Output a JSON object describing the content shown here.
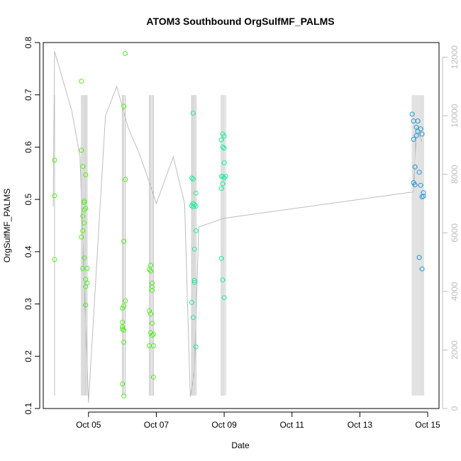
{
  "chart_data": {
    "type": "scatter",
    "title": "ATOM3 Southbound OrgSulfMF_PALMS",
    "xlabel": "Date",
    "ylabel": "OrgSulfMF_PALMS",
    "xlim": [
      "2017-10-03T16:00",
      "2017-10-15T08:00"
    ],
    "ylim": [
      0.1,
      0.8
    ],
    "y2lim": [
      0,
      12500
    ],
    "x_ticks": [
      {
        "date": "2017-10-05",
        "label": "Oct 05"
      },
      {
        "date": "2017-10-07",
        "label": "Oct 07"
      },
      {
        "date": "2017-10-09",
        "label": "Oct 09"
      },
      {
        "date": "2017-10-11",
        "label": "Oct 11"
      },
      {
        "date": "2017-10-13",
        "label": "Oct 13"
      },
      {
        "date": "2017-10-15",
        "label": "Oct 15"
      }
    ],
    "y_ticks": [
      0.1,
      0.2,
      0.3,
      0.4,
      0.5,
      0.6,
      0.7,
      0.8
    ],
    "y2_ticks": [
      0,
      2000,
      4000,
      6000,
      8000,
      10000,
      12000
    ],
    "grid": false,
    "colors": {
      "early": "#55ee22",
      "mid": "#22ee99",
      "late": "#2299dd",
      "altitude_line": "#bdbdbd"
    },
    "series": [
      {
        "values_description": "OrgSulfMF_PALMS",
        "points": [
          [
            "2017-10-04T00:00",
            0.575
          ],
          [
            "2017-10-04T00:00",
            0.507
          ],
          [
            "2017-10-04T00:00",
            0.385
          ],
          [
            "2017-10-04T19:00",
            0.726
          ],
          [
            "2017-10-04T19:00",
            0.594
          ],
          [
            "2017-10-04T20:00",
            0.563
          ],
          [
            "2017-10-04T21:00",
            0.497
          ],
          [
            "2017-10-04T21:00",
            0.494
          ],
          [
            "2017-10-04T22:00",
            0.547
          ],
          [
            "2017-10-04T21:00",
            0.48
          ],
          [
            "2017-10-04T22:00",
            0.483
          ],
          [
            "2017-10-04T20:00",
            0.468
          ],
          [
            "2017-10-04T21:00",
            0.455
          ],
          [
            "2017-10-04T20:00",
            0.44
          ],
          [
            "2017-10-04T19:00",
            0.428
          ],
          [
            "2017-10-04T21:00",
            0.388
          ],
          [
            "2017-10-04T20:00",
            0.368
          ],
          [
            "2017-10-04T23:00",
            0.368
          ],
          [
            "2017-10-04T22:00",
            0.347
          ],
          [
            "2017-10-04T23:00",
            0.34
          ],
          [
            "2017-10-04T22:00",
            0.333
          ],
          [
            "2017-10-04T22:00",
            0.298
          ],
          [
            "2017-10-06T02:00",
            0.779
          ],
          [
            "2017-10-06T01:00",
            0.678
          ],
          [
            "2017-10-06T02:00",
            0.538
          ],
          [
            "2017-10-06T01:00",
            0.42
          ],
          [
            "2017-10-06T02:00",
            0.306
          ],
          [
            "2017-10-06T01:00",
            0.296
          ],
          [
            "2017-10-06T00:00",
            0.292
          ],
          [
            "2017-10-06T00:00",
            0.265
          ],
          [
            "2017-10-06T00:00",
            0.256
          ],
          [
            "2017-10-06T00:00",
            0.252
          ],
          [
            "2017-10-06T01:00",
            0.25
          ],
          [
            "2017-10-06T01:00",
            0.227
          ],
          [
            "2017-10-06T00:00",
            0.147
          ],
          [
            "2017-10-06T01:00",
            0.124
          ],
          [
            "2017-10-06T19:00",
            0.366
          ],
          [
            "2017-10-06T20:00",
            0.374
          ],
          [
            "2017-10-06T20:00",
            0.363
          ],
          [
            "2017-10-06T21:00",
            0.34
          ],
          [
            "2017-10-06T21:00",
            0.333
          ],
          [
            "2017-10-06T21:00",
            0.326
          ],
          [
            "2017-10-06T19:00",
            0.287
          ],
          [
            "2017-10-06T20:00",
            0.281
          ],
          [
            "2017-10-06T21:00",
            0.263
          ],
          [
            "2017-10-06T20:00",
            0.245
          ],
          [
            "2017-10-06T22:00",
            0.242
          ],
          [
            "2017-10-06T21:00",
            0.24
          ],
          [
            "2017-10-06T19:00",
            0.22
          ],
          [
            "2017-10-06T22:00",
            0.22
          ],
          [
            "2017-10-06T22:00",
            0.16
          ],
          [
            "2017-10-08T02:00",
            0.665
          ],
          [
            "2017-10-08T01:00",
            0.541
          ],
          [
            "2017-10-08T02:00",
            0.539
          ],
          [
            "2017-10-08T04:00",
            0.512
          ],
          [
            "2017-10-08T02:00",
            0.492
          ],
          [
            "2017-10-08T03:00",
            0.49
          ],
          [
            "2017-10-08T01:00",
            0.488
          ],
          [
            "2017-10-08T04:00",
            0.487
          ],
          [
            "2017-10-08T02:00",
            0.486
          ],
          [
            "2017-10-08T04:00",
            0.44
          ],
          [
            "2017-10-08T03:00",
            0.405
          ],
          [
            "2017-10-08T03:00",
            0.345
          ],
          [
            "2017-10-08T03:00",
            0.341
          ],
          [
            "2017-10-08T01:00",
            0.303
          ],
          [
            "2017-10-08T02:00",
            0.274
          ],
          [
            "2017-10-08T04:00",
            0.218
          ],
          [
            "2017-10-08T23:00",
            0.625
          ],
          [
            "2017-10-09T00:00",
            0.621
          ],
          [
            "2017-10-08T22:00",
            0.614
          ],
          [
            "2017-10-08T23:00",
            0.6
          ],
          [
            "2017-10-09T00:00",
            0.598
          ],
          [
            "2017-10-09T00:00",
            0.57
          ],
          [
            "2017-10-08T22:00",
            0.544
          ],
          [
            "2017-10-09T00:00",
            0.541
          ],
          [
            "2017-10-08T23:00",
            0.544
          ],
          [
            "2017-10-09T01:00",
            0.544
          ],
          [
            "2017-10-08T23:00",
            0.53
          ],
          [
            "2017-10-08T22:00",
            0.521
          ],
          [
            "2017-10-08T22:00",
            0.387
          ],
          [
            "2017-10-08T23:00",
            0.346
          ],
          [
            "2017-10-09T00:00",
            0.312
          ],
          [
            "2017-10-14T13:00",
            0.663
          ],
          [
            "2017-10-14T14:00",
            0.65
          ],
          [
            "2017-10-14T17:00",
            0.65
          ],
          [
            "2017-10-14T16:00",
            0.638
          ],
          [
            "2017-10-14T19:00",
            0.635
          ],
          [
            "2017-10-14T17:00",
            0.63
          ],
          [
            "2017-10-14T20:00",
            0.625
          ],
          [
            "2017-10-14T16:00",
            0.622
          ],
          [
            "2017-10-14T14:00",
            0.615
          ],
          [
            "2017-10-14T15:00",
            0.562
          ],
          [
            "2017-10-14T18:00",
            0.552
          ],
          [
            "2017-10-14T14:00",
            0.532
          ],
          [
            "2017-10-14T15:00",
            0.528
          ],
          [
            "2017-10-14T19:00",
            0.527
          ],
          [
            "2017-10-14T21:00",
            0.513
          ],
          [
            "2017-10-14T21:00",
            0.506
          ],
          [
            "2017-10-14T20:00",
            0.505
          ],
          [
            "2017-10-14T18:00",
            0.389
          ],
          [
            "2017-10-14T20:00",
            0.367
          ]
        ]
      },
      {
        "values_description": "right axis trace",
        "points": [
          [
            "2017-10-03T23:00",
            6900
          ],
          [
            "2017-10-04T00:00",
            12200
          ],
          [
            "2017-10-04T06:00",
            11200
          ],
          [
            "2017-10-04T12:00",
            10200
          ],
          [
            "2017-10-04T18:00",
            8600
          ],
          [
            "2017-10-05T00:00",
            200
          ],
          [
            "2017-10-05T12:00",
            10000
          ],
          [
            "2017-10-05T20:00",
            11000
          ],
          [
            "2017-10-06T04:00",
            9600
          ],
          [
            "2017-10-06T12:00",
            8700
          ],
          [
            "2017-10-06T20:00",
            7600
          ],
          [
            "2017-10-07T00:00",
            7000
          ],
          [
            "2017-10-07T12:00",
            8600
          ],
          [
            "2017-10-07T20:00",
            7000
          ],
          [
            "2017-10-08T00:00",
            400
          ],
          [
            "2017-10-08T03:00",
            1300
          ],
          [
            "2017-10-08T06:00",
            6200
          ],
          [
            "2017-10-09T00:00",
            6500
          ],
          [
            "2017-10-14T14:00",
            7400
          ],
          [
            "2017-10-14T16:00",
            9600
          ],
          [
            "2017-10-14T20:00",
            9100
          ]
        ]
      }
    ]
  }
}
